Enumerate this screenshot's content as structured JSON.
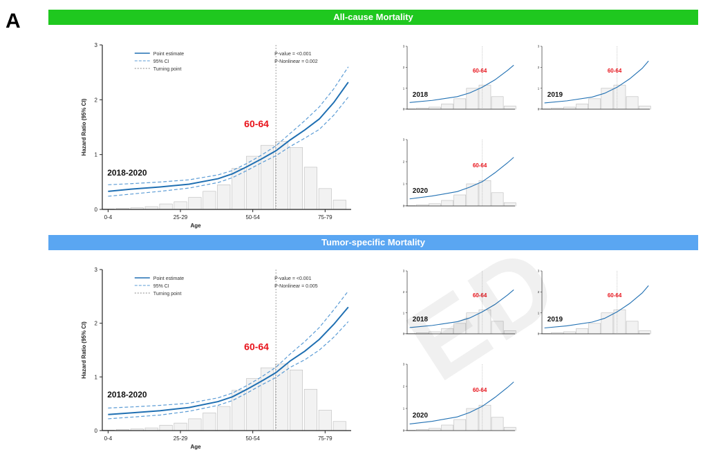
{
  "panel_label": "A",
  "banners": {
    "top": "All-cause Mortality",
    "bottom": "Tumor-specific Mortality"
  },
  "watermark": "ED",
  "colors": {
    "point_estimate": "#1f6fb2",
    "ci": "#5a9bd5",
    "turning_point": "#888888",
    "histogram_fill": "#f2f2f2",
    "histogram_stroke": "#bbbbbb",
    "highlight": "#e8131b",
    "banner_top": "#1fc81f",
    "banner_bottom": "#5aa6f2"
  },
  "chart_data": [
    {
      "id": "allcause-main",
      "type": "line",
      "panel": "All-cause Mortality",
      "xlabel": "Age",
      "ylabel": "Hazard Ratio (95% CI)",
      "x_ticks": [
        "0-4",
        "25-29",
        "50-54",
        "75-79"
      ],
      "x_tick_positions": [
        2,
        27,
        52,
        77
      ],
      "y_ticks": [
        "0",
        "1",
        "2",
        "3"
      ],
      "ylim": [
        0,
        3
      ],
      "xlim": [
        0,
        86
      ],
      "legend": [
        "Point estimate",
        "95% CI",
        "Turning point"
      ],
      "legend_position": "top-left",
      "annotation_p": [
        "P-value = <0.001",
        "P-Nonlinear = 0.002"
      ],
      "period_label": "2018-2020",
      "turning_label": "60-64",
      "turning_x": 60,
      "series": [
        {
          "name": "Point estimate",
          "x": [
            2,
            10,
            20,
            30,
            40,
            45,
            50,
            55,
            60,
            65,
            70,
            75,
            80,
            85
          ],
          "y": [
            0.33,
            0.37,
            0.41,
            0.46,
            0.56,
            0.65,
            0.78,
            0.92,
            1.07,
            1.27,
            1.45,
            1.65,
            1.95,
            2.32
          ]
        },
        {
          "name": "95% CI",
          "x": [
            2,
            10,
            20,
            30,
            40,
            45,
            50,
            55,
            60,
            65,
            70,
            75,
            80,
            85
          ],
          "y": [
            0.45,
            0.47,
            0.5,
            0.54,
            0.63,
            0.71,
            0.84,
            0.99,
            1.16,
            1.39,
            1.62,
            1.87,
            2.2,
            2.6
          ]
        },
        {
          "name": "95% CI",
          "x": [
            2,
            10,
            20,
            30,
            40,
            45,
            50,
            55,
            60,
            65,
            70,
            75,
            80,
            85
          ],
          "y": [
            0.24,
            0.28,
            0.33,
            0.39,
            0.49,
            0.58,
            0.71,
            0.85,
            0.98,
            1.15,
            1.3,
            1.46,
            1.72,
            2.05
          ]
        }
      ],
      "histogram": {
        "bins": [
          2,
          7,
          12,
          17,
          22,
          27,
          32,
          37,
          42,
          47,
          52,
          57,
          62,
          67,
          72,
          77,
          82
        ],
        "values": [
          0.01,
          0.02,
          0.03,
          0.05,
          0.1,
          0.14,
          0.22,
          0.33,
          0.45,
          0.75,
          0.97,
          1.17,
          1.24,
          1.13,
          0.77,
          0.38,
          0.17
        ]
      }
    },
    {
      "id": "tumor-main",
      "type": "line",
      "panel": "Tumor-specific Mortality",
      "xlabel": "Age",
      "ylabel": "Hazard Ratio (95% CI)",
      "x_ticks": [
        "0-4",
        "25-29",
        "50-54",
        "75-79"
      ],
      "x_tick_positions": [
        2,
        27,
        52,
        77
      ],
      "y_ticks": [
        "0",
        "1",
        "2",
        "3"
      ],
      "ylim": [
        0,
        3
      ],
      "xlim": [
        0,
        86
      ],
      "legend": [
        "Point estimate",
        "95% CI",
        "Turning point"
      ],
      "legend_position": "top-left",
      "annotation_p": [
        "P-value = <0.001",
        "P-Nonlinear = 0.005"
      ],
      "period_label": "2018-2020",
      "turning_label": "60-64",
      "turning_x": 60,
      "series": [
        {
          "name": "Point estimate",
          "x": [
            2,
            10,
            20,
            30,
            40,
            45,
            50,
            55,
            60,
            65,
            70,
            75,
            80,
            85
          ],
          "y": [
            0.3,
            0.33,
            0.37,
            0.43,
            0.54,
            0.63,
            0.77,
            0.92,
            1.08,
            1.3,
            1.48,
            1.7,
            1.98,
            2.3
          ]
        },
        {
          "name": "95% CI",
          "x": [
            2,
            10,
            20,
            30,
            40,
            45,
            50,
            55,
            60,
            65,
            70,
            75,
            80,
            85
          ],
          "y": [
            0.42,
            0.44,
            0.47,
            0.51,
            0.61,
            0.7,
            0.84,
            1.0,
            1.18,
            1.43,
            1.66,
            1.92,
            2.25,
            2.6
          ]
        },
        {
          "name": "95% CI",
          "x": [
            2,
            10,
            20,
            30,
            40,
            45,
            50,
            55,
            60,
            65,
            70,
            75,
            80,
            85
          ],
          "y": [
            0.22,
            0.25,
            0.29,
            0.36,
            0.47,
            0.56,
            0.7,
            0.85,
            0.99,
            1.18,
            1.32,
            1.5,
            1.74,
            2.03
          ]
        }
      ],
      "histogram": {
        "bins": [
          2,
          7,
          12,
          17,
          22,
          27,
          32,
          37,
          42,
          47,
          52,
          57,
          62,
          67,
          72,
          77,
          82
        ],
        "values": [
          0.01,
          0.02,
          0.03,
          0.05,
          0.1,
          0.14,
          0.22,
          0.33,
          0.45,
          0.75,
          0.97,
          1.17,
          1.24,
          1.13,
          0.77,
          0.38,
          0.17
        ]
      }
    },
    {
      "id": "allcause-2018",
      "type": "line",
      "panel": "All-cause Mortality",
      "period_label": "2018",
      "turning_label": "60-64",
      "ylim": [
        0,
        3
      ],
      "xlim": [
        0,
        86
      ],
      "turning_x": 60,
      "series": [
        {
          "name": "Point estimate",
          "x": [
            2,
            20,
            40,
            50,
            60,
            70,
            80,
            85
          ],
          "y": [
            0.32,
            0.42,
            0.6,
            0.78,
            1.05,
            1.4,
            1.85,
            2.1
          ]
        }
      ],
      "histogram": {
        "bins": [
          2,
          12,
          22,
          32,
          42,
          52,
          62,
          72,
          82
        ],
        "values": [
          0.02,
          0.05,
          0.1,
          0.25,
          0.5,
          1.0,
          1.15,
          0.6,
          0.15
        ]
      }
    },
    {
      "id": "allcause-2019",
      "type": "line",
      "panel": "All-cause Mortality",
      "period_label": "2019",
      "turning_label": "60-64",
      "ylim": [
        0,
        3
      ],
      "xlim": [
        0,
        86
      ],
      "turning_x": 60,
      "series": [
        {
          "name": "Point estimate",
          "x": [
            2,
            20,
            40,
            50,
            60,
            70,
            80,
            85
          ],
          "y": [
            0.3,
            0.4,
            0.58,
            0.76,
            1.05,
            1.45,
            1.95,
            2.3
          ]
        }
      ],
      "histogram": {
        "bins": [
          2,
          12,
          22,
          32,
          42,
          52,
          62,
          72,
          82
        ],
        "values": [
          0.02,
          0.05,
          0.1,
          0.25,
          0.5,
          1.0,
          1.15,
          0.6,
          0.15
        ]
      }
    },
    {
      "id": "allcause-2020",
      "type": "line",
      "panel": "All-cause Mortality",
      "period_label": "2020",
      "turning_label": "60-64",
      "ylim": [
        0,
        3
      ],
      "xlim": [
        0,
        86
      ],
      "turning_x": 60,
      "series": [
        {
          "name": "Point estimate",
          "x": [
            2,
            20,
            40,
            50,
            60,
            70,
            80,
            85
          ],
          "y": [
            0.32,
            0.45,
            0.65,
            0.85,
            1.1,
            1.5,
            1.95,
            2.2
          ]
        }
      ],
      "histogram": {
        "bins": [
          2,
          12,
          22,
          32,
          42,
          52,
          62,
          72,
          82
        ],
        "values": [
          0.02,
          0.05,
          0.1,
          0.25,
          0.5,
          1.0,
          1.15,
          0.6,
          0.15
        ]
      }
    },
    {
      "id": "tumor-2018",
      "type": "line",
      "panel": "Tumor-specific Mortality",
      "period_label": "2018",
      "turning_label": "60-64",
      "ylim": [
        0,
        3
      ],
      "xlim": [
        0,
        86
      ],
      "turning_x": 60,
      "series": [
        {
          "name": "Point estimate",
          "x": [
            2,
            20,
            40,
            50,
            60,
            70,
            80,
            85
          ],
          "y": [
            0.3,
            0.4,
            0.58,
            0.76,
            1.05,
            1.4,
            1.85,
            2.1
          ]
        }
      ],
      "histogram": {
        "bins": [
          2,
          12,
          22,
          32,
          42,
          52,
          62,
          72,
          82
        ],
        "values": [
          0.02,
          0.05,
          0.1,
          0.25,
          0.5,
          1.0,
          1.15,
          0.6,
          0.15
        ]
      }
    },
    {
      "id": "tumor-2019",
      "type": "line",
      "panel": "Tumor-specific Mortality",
      "period_label": "2019",
      "turning_label": "60-64",
      "ylim": [
        0,
        3
      ],
      "xlim": [
        0,
        86
      ],
      "turning_x": 60,
      "series": [
        {
          "name": "Point estimate",
          "x": [
            2,
            20,
            40,
            50,
            60,
            70,
            80,
            85
          ],
          "y": [
            0.28,
            0.38,
            0.56,
            0.74,
            1.05,
            1.45,
            1.95,
            2.3
          ]
        }
      ],
      "histogram": {
        "bins": [
          2,
          12,
          22,
          32,
          42,
          52,
          62,
          72,
          82
        ],
        "values": [
          0.02,
          0.05,
          0.1,
          0.25,
          0.5,
          1.0,
          1.15,
          0.6,
          0.15
        ]
      }
    },
    {
      "id": "tumor-2020",
      "type": "line",
      "panel": "Tumor-specific Mortality",
      "period_label": "2020",
      "turning_label": "60-64",
      "ylim": [
        0,
        3
      ],
      "xlim": [
        0,
        86
      ],
      "turning_x": 60,
      "series": [
        {
          "name": "Point estimate",
          "x": [
            2,
            20,
            40,
            50,
            60,
            70,
            80,
            85
          ],
          "y": [
            0.3,
            0.42,
            0.62,
            0.82,
            1.1,
            1.5,
            1.95,
            2.2
          ]
        }
      ],
      "histogram": {
        "bins": [
          2,
          12,
          22,
          32,
          42,
          52,
          62,
          72,
          82
        ],
        "values": [
          0.02,
          0.05,
          0.1,
          0.25,
          0.5,
          1.0,
          1.15,
          0.6,
          0.15
        ]
      }
    }
  ]
}
